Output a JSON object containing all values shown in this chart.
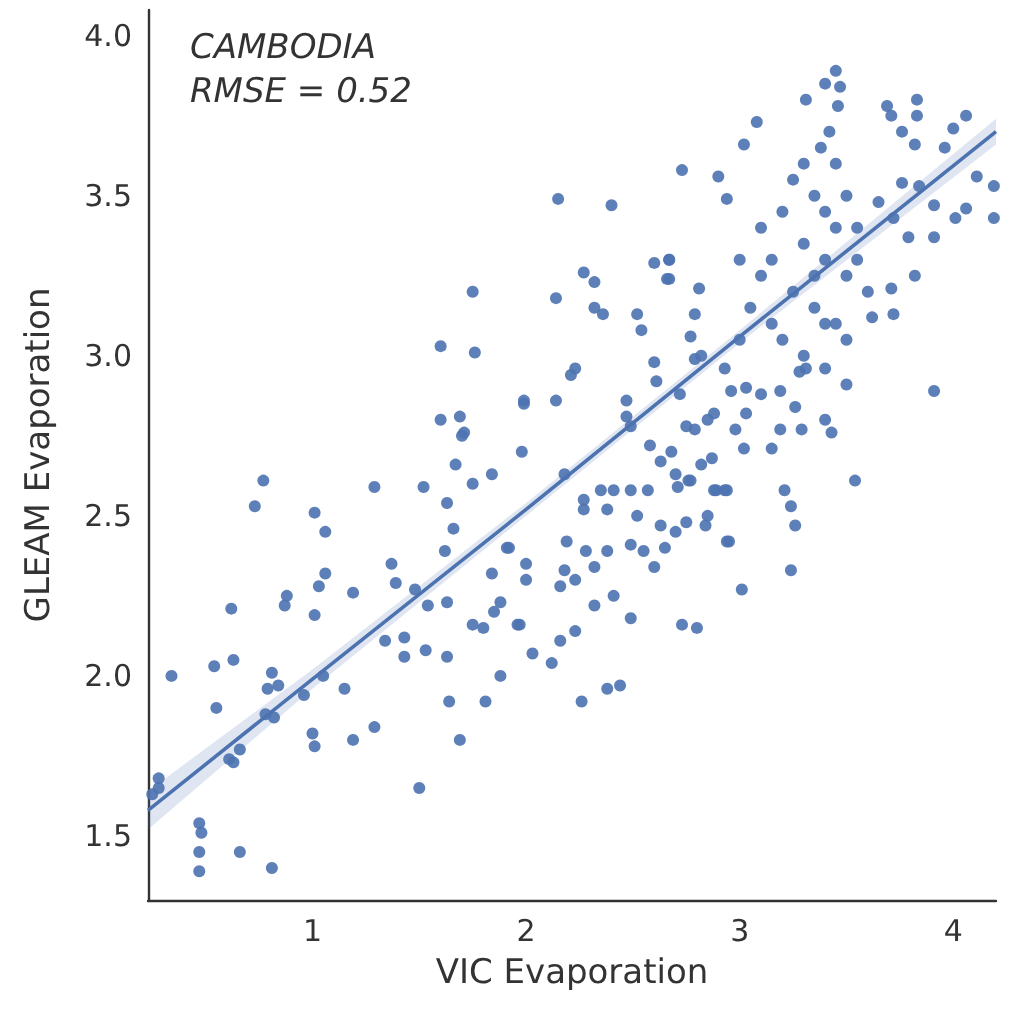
{
  "chart_data": {
    "type": "scatter",
    "xlabel": "VIC Evaporation",
    "ylabel": "GLEAM Evaporation",
    "annotations": [
      "CAMBODIA",
      "RMSE = 0.52"
    ],
    "xlim": [
      0.23,
      4.2
    ],
    "ylim": [
      1.3,
      4.08
    ],
    "xticks": [
      1,
      2,
      3,
      4
    ],
    "yticks": [
      1.5,
      {
        "value": 2,
        "label": "2.0"
      },
      2.5,
      {
        "value": 3,
        "label": "3.0"
      },
      3.5,
      {
        "value": 4,
        "label": "4.0"
      }
    ],
    "grid": false,
    "series": [
      {
        "marker": "circle",
        "color": "#4c72b0",
        "x": [
          0.25,
          0.28,
          0.34,
          0.54,
          0.62,
          0.63,
          0.55,
          0.73,
          0.77,
          0.28,
          0.47,
          0.48,
          0.47,
          0.47,
          0.66,
          0.81,
          0.61,
          0.63,
          0.66,
          0.81,
          0.79,
          0.84,
          0.78,
          0.82,
          0.88,
          0.87,
          1.01,
          1.06,
          1.06,
          1.03,
          1.01,
          1.05,
          0.96,
          1.0,
          1.01,
          1.15,
          1.19,
          1.19,
          1.29,
          1.29,
          1.5,
          1.34,
          1.37,
          1.39,
          1.43,
          1.43,
          1.48,
          1.52,
          1.6,
          1.69,
          1.7,
          1.67,
          1.75,
          1.84,
          1.63,
          1.66,
          1.62,
          1.54,
          1.63,
          1.53,
          1.63,
          1.64,
          1.69,
          1.81,
          1.75,
          1.8,
          1.85,
          1.88,
          1.84,
          1.92,
          1.96,
          2.0,
          2.0,
          1.88,
          2.03,
          1.98,
          1.99,
          1.75,
          1.6,
          1.76,
          2.14,
          2.27,
          2.32,
          2.32,
          2.36,
          2.4,
          2.6,
          2.67,
          2.66,
          2.52,
          2.54,
          2.81,
          1.99,
          2.14,
          2.21,
          2.23,
          1.71,
          2.18,
          2.47,
          2.47,
          2.6,
          2.61,
          2.72,
          2.79,
          2.49,
          2.58,
          2.63,
          2.68,
          2.7,
          2.79,
          2.85,
          2.87,
          2.77,
          2.89,
          2.94,
          2.27,
          2.35,
          2.41,
          2.49,
          2.52,
          2.57,
          2.27,
          2.38,
          2.63,
          2.7,
          2.75,
          2.85,
          2.95,
          2.19,
          2.28,
          2.38,
          2.49,
          2.55,
          2.65,
          2.6,
          2.32,
          2.18,
          2.16,
          2.23,
          2.41,
          2.32,
          2.49,
          2.73,
          2.8,
          2.23,
          2.16,
          2.12,
          2.38,
          2.44,
          2.26,
          1.97,
          1.91,
          3.45,
          3.4,
          3.47,
          3.31,
          3.46,
          3.08,
          3.02,
          2.73,
          2.9,
          2.94,
          3.69,
          3.83,
          3.71,
          3.83,
          4.06,
          3.76,
          4.0,
          3.82,
          3.96,
          4.11,
          4.19,
          3.76,
          3.84,
          3.91,
          4.06,
          4.01,
          4.19,
          3.91,
          3.79,
          3.72,
          3.65,
          3.82,
          3.71,
          3.72,
          3.62,
          3.91,
          3.54,
          2.67,
          2.67,
          2.79,
          2.77,
          2.82,
          2.93,
          2.96,
          3.03,
          3.1,
          3.19,
          3.31,
          3.4,
          3.5,
          3.26,
          3.29,
          3.4,
          3.43,
          3.19,
          3.15,
          3.03,
          2.98,
          3.02,
          2.88,
          2.75,
          2.82,
          2.71,
          2.76,
          2.88,
          2.93,
          3.21,
          3.24,
          3.26,
          2.84,
          2.94,
          3.3,
          3.35,
          3.4,
          3.45,
          3.3,
          3.4,
          3.5,
          3.25,
          3.35,
          3.45,
          3.2,
          3.3,
          3.5,
          3.15,
          3.1,
          3.05,
          3.2,
          3.25,
          3.45,
          3.5,
          3.55,
          3.38,
          3.42,
          3.35,
          3.4,
          3.55,
          3.6,
          3.15,
          3.0,
          3.28,
          3.1,
          3.0,
          3.24,
          3.01,
          2.15
        ],
        "values": [
          1.63,
          1.68,
          2.0,
          2.03,
          2.21,
          2.05,
          1.9,
          2.53,
          2.61,
          1.65,
          1.54,
          1.51,
          1.45,
          1.39,
          1.45,
          1.4,
          1.74,
          1.73,
          1.77,
          2.01,
          1.96,
          1.97,
          1.88,
          1.87,
          2.25,
          2.22,
          2.51,
          2.45,
          2.32,
          2.28,
          2.19,
          2.0,
          1.94,
          1.82,
          1.78,
          1.96,
          2.26,
          1.8,
          1.84,
          2.59,
          1.65,
          2.11,
          2.35,
          2.29,
          2.12,
          2.06,
          2.27,
          2.59,
          2.8,
          2.81,
          2.75,
          2.66,
          2.6,
          2.63,
          2.54,
          2.46,
          2.39,
          2.22,
          2.23,
          2.08,
          2.06,
          1.92,
          1.8,
          1.92,
          2.16,
          2.15,
          2.2,
          2.23,
          2.32,
          2.4,
          2.16,
          2.35,
          2.3,
          2.0,
          2.07,
          2.7,
          2.85,
          3.2,
          3.03,
          3.01,
          3.18,
          3.26,
          3.23,
          3.15,
          3.13,
          3.47,
          3.29,
          3.3,
          3.24,
          3.13,
          3.08,
          3.21,
          2.86,
          2.86,
          2.94,
          2.96,
          2.76,
          2.63,
          2.86,
          2.81,
          2.98,
          2.92,
          2.88,
          2.99,
          2.78,
          2.72,
          2.67,
          2.7,
          2.63,
          2.77,
          2.8,
          2.68,
          2.61,
          2.58,
          2.58,
          2.55,
          2.58,
          2.58,
          2.58,
          2.5,
          2.58,
          2.52,
          2.52,
          2.47,
          2.45,
          2.48,
          2.5,
          2.42,
          2.42,
          2.39,
          2.39,
          2.41,
          2.39,
          2.4,
          2.34,
          2.34,
          2.33,
          2.28,
          2.3,
          2.25,
          2.22,
          2.18,
          2.16,
          2.15,
          2.14,
          2.11,
          2.04,
          1.96,
          1.97,
          1.92,
          2.16,
          2.4,
          3.89,
          3.85,
          3.84,
          3.8,
          3.78,
          3.73,
          3.66,
          3.58,
          3.56,
          3.49,
          3.78,
          3.8,
          3.75,
          3.75,
          3.75,
          3.7,
          3.71,
          3.66,
          3.65,
          3.56,
          3.53,
          3.54,
          3.53,
          3.47,
          3.46,
          3.43,
          3.43,
          3.37,
          3.37,
          3.43,
          3.48,
          3.25,
          3.21,
          3.13,
          3.12,
          2.89,
          2.61,
          3.3,
          3.24,
          3.13,
          3.06,
          3.0,
          2.96,
          2.89,
          2.9,
          2.88,
          2.89,
          2.96,
          2.96,
          2.91,
          2.84,
          2.77,
          2.8,
          2.76,
          2.77,
          2.71,
          2.82,
          2.77,
          2.71,
          2.82,
          2.78,
          2.66,
          2.59,
          2.61,
          2.58,
          2.58,
          2.58,
          2.53,
          2.47,
          2.47,
          2.42,
          3.6,
          3.5,
          3.45,
          3.4,
          3.35,
          3.3,
          3.25,
          3.2,
          3.15,
          3.1,
          3.05,
          3.0,
          3.05,
          3.3,
          3.25,
          3.15,
          3.45,
          3.55,
          3.6,
          3.5,
          3.4,
          3.65,
          3.7,
          3.25,
          3.1,
          3.3,
          3.2,
          3.1,
          3.05,
          2.95,
          3.4,
          3.3,
          2.33,
          2.27,
          3.49
        ]
      },
      {
        "type": "line",
        "color": "#4c72b0",
        "x": [
          0.23,
          1,
          2,
          3,
          4.2
        ],
        "values": [
          1.58,
          1.99,
          2.52,
          3.06,
          3.7
        ],
        "lower": [
          1.52,
          1.96,
          2.5,
          3.04,
          3.66
        ],
        "upper": [
          1.64,
          2.02,
          2.54,
          3.08,
          3.74
        ]
      }
    ]
  }
}
